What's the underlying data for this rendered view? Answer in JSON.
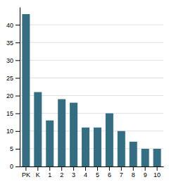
{
  "chart_data": {
    "type": "bar",
    "categories": [
      "PK",
      "K",
      "1",
      "2",
      "3",
      "4",
      "5",
      "6",
      "7",
      "8",
      "9",
      "10"
    ],
    "values": [
      43,
      21,
      13,
      19,
      18,
      11,
      11,
      15,
      10,
      7,
      5,
      5
    ],
    "color": "#336e82",
    "ylim": [
      0,
      45
    ],
    "yticks": [
      0,
      5,
      10,
      15,
      20,
      25,
      30,
      35,
      40
    ],
    "grid": true
  }
}
